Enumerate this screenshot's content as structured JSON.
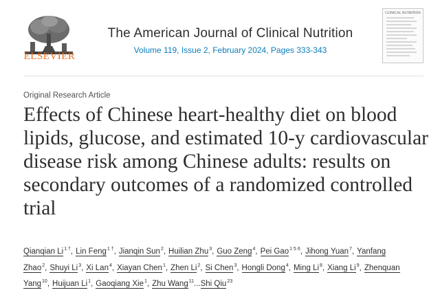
{
  "publisher": {
    "name": "ELSEVIER"
  },
  "journal": {
    "title": "The American Journal of Clinical Nutrition",
    "volume_line": "Volume 119, Issue 2, February 2024, Pages 333-343",
    "cover_title": "CLINICAL NUTRITION"
  },
  "article": {
    "type": "Original Research Article",
    "title": "Effects of Chinese heart-healthy diet on blood lipids, glucose, and estimated 10-y cardiovascular disease risk among Chinese adults: results on secondary outcomes of a randomized controlled trial"
  },
  "authors": [
    {
      "name": "Qianqian Li",
      "aff": "1 †"
    },
    {
      "name": "Lin Feng",
      "aff": "1 †"
    },
    {
      "name": "Jianqin Sun",
      "aff": "2"
    },
    {
      "name": "Huilian Zhu",
      "aff": "3"
    },
    {
      "name": "Guo Zeng",
      "aff": "4"
    },
    {
      "name": "Pei Gao",
      "aff": "1 5 6"
    },
    {
      "name": "Jihong Yuan",
      "aff": "7"
    },
    {
      "name": "Yanfang Zhao",
      "aff": "2"
    },
    {
      "name": "Shuyi Li",
      "aff": "3"
    },
    {
      "name": "Xi Lan",
      "aff": "4"
    },
    {
      "name": "Xiayan Chen",
      "aff": "1"
    },
    {
      "name": "Zhen Li",
      "aff": "2"
    },
    {
      "name": "Si Chen",
      "aff": "3"
    },
    {
      "name": "Hongli Dong",
      "aff": "4"
    },
    {
      "name": "Ming Li",
      "aff": "8"
    },
    {
      "name": "Xiang Li",
      "aff": "9"
    },
    {
      "name": "Zhenquan Yang",
      "aff": "10"
    },
    {
      "name": "Huijuan Li",
      "aff": "1"
    },
    {
      "name": "Gaoqiang Xie",
      "aff": "1"
    },
    {
      "name": "Zhu Wang",
      "aff": "11"
    },
    {
      "name": "Shi Qiu",
      "aff": "23"
    }
  ],
  "authors_ellipsis": "...",
  "colors": {
    "brand_orange": "#e9711c",
    "link_blue": "#0c7dbb",
    "text": "#2e2e2e"
  }
}
